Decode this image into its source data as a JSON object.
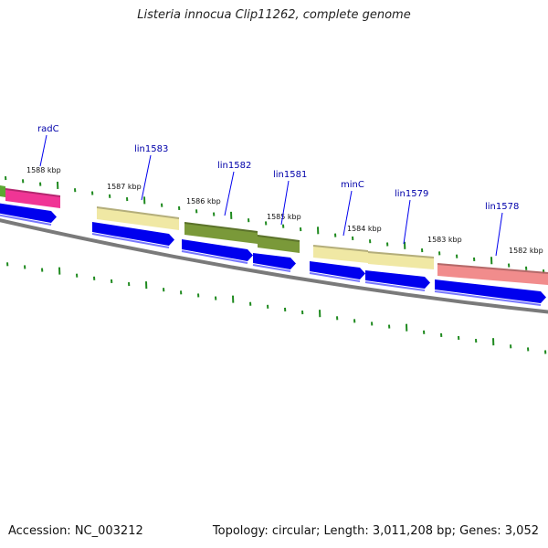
{
  "title": "Listeria innocua Clip11262, complete genome",
  "footer": {
    "accession": "Accession: NC_003212",
    "summary": "Topology: circular; Length: 3,011,208 bp; Genes: 3,052"
  },
  "colors": {
    "backbone": "#7a7a7a",
    "tick": "#1f8a1f",
    "cds": "#0000ee",
    "gene_label": "#0000aa"
  },
  "scale_labels": [
    "1588 kbp",
    "1587 kbp",
    "1586 kbp",
    "1585 kbp",
    "1584 kbp",
    "1583 kbp",
    "1582 kbp"
  ],
  "genes": [
    {
      "name": "radC",
      "color": "#ee1f8a"
    },
    {
      "name": "lin1583",
      "color": "#eee59a"
    },
    {
      "name": "lin1582",
      "color": "#6b8e23"
    },
    {
      "name": "lin1581",
      "color": "#6b8e23"
    },
    {
      "name": "minC",
      "color": "#eee59a"
    },
    {
      "name": "lin1579",
      "color": "#eee59a"
    },
    {
      "name": "lin1578",
      "color": "#f08080"
    }
  ]
}
